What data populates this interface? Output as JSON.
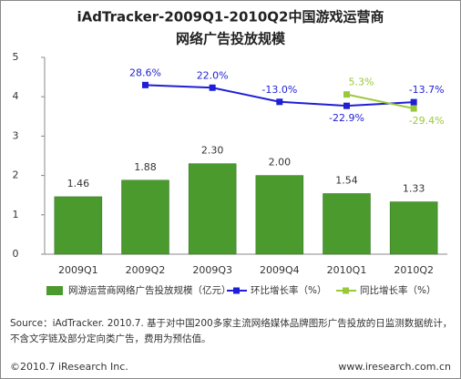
{
  "chart_data": {
    "type": "bar",
    "title": [
      "iAdTracker-2009Q1-2010Q2中国游戏运营商",
      "网络广告投放规模"
    ],
    "categories": [
      "2009Q1",
      "2009Q2",
      "2009Q3",
      "2009Q4",
      "2010Q1",
      "2010Q2"
    ],
    "ylim": [
      0,
      5
    ],
    "yticks": [
      0,
      1,
      2,
      3,
      4,
      5
    ],
    "y2lim": [
      -390,
      97
    ],
    "series": [
      {
        "name": "网游运营商网络广告投放规模（亿元）",
        "type": "bar",
        "color": "#4a9a2e",
        "values": [
          1.46,
          1.88,
          2.3,
          2.0,
          1.54,
          1.33
        ],
        "value_labels": [
          "1.46",
          "1.88",
          "2.30",
          "2.00",
          "1.54",
          "1.33"
        ]
      },
      {
        "name": "环比增长率（%）",
        "type": "line",
        "axis": "y2",
        "color": "#1f1fd6",
        "values": [
          null,
          28.6,
          22.0,
          -13.0,
          -22.9,
          -13.7
        ],
        "value_labels": [
          null,
          "28.6%",
          "22.0%",
          "-13.0%",
          "-22.9%",
          "-13.7%"
        ]
      },
      {
        "name": "同比增长率（%）",
        "type": "line",
        "axis": "y2",
        "color": "#99c93a",
        "values": [
          null,
          null,
          null,
          null,
          5.3,
          -29.4
        ],
        "value_labels": [
          null,
          null,
          null,
          null,
          "5.3%",
          "-29.4%"
        ]
      }
    ],
    "source": "Source：iAdTracker. 2010.7. 基于对中国200多家主流网络媒体品牌图形广告投放的日监测数据统计，不含文字链及部分定向类广告，费用为预估值。",
    "copyright": "©2010.7 iResearch Inc.",
    "website": "www.iresearch.com.cn"
  }
}
